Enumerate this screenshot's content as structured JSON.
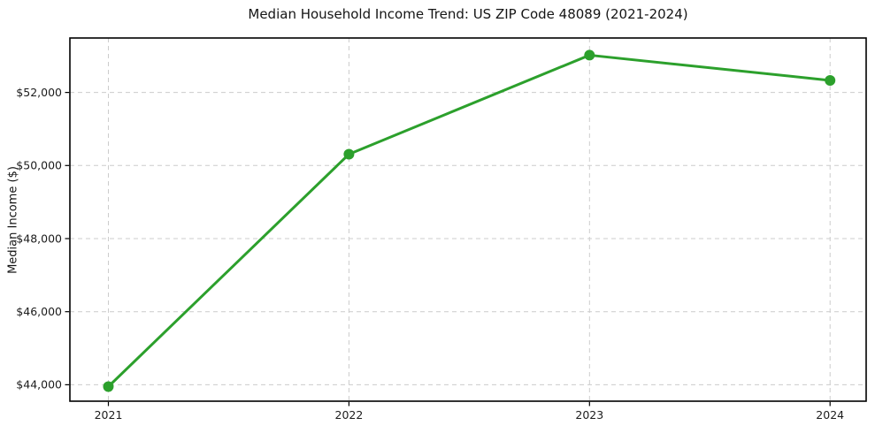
{
  "figure": {
    "background": "#ffffff"
  },
  "chart_data": {
    "type": "line",
    "title": "Median Household Income Trend: US ZIP Code 48089 (2021-2024)",
    "xlabel": "",
    "ylabel": "Median Income ($)",
    "x": [
      2021,
      2022,
      2023,
      2024
    ],
    "xticklabels": [
      "2021",
      "2022",
      "2023",
      "2024"
    ],
    "values": [
      43950,
      50310,
      53020,
      52330
    ],
    "yticks": [
      44000,
      46000,
      48000,
      50000,
      52000
    ],
    "yticklabels": [
      "$44,000",
      "$46,000",
      "$48,000",
      "$50,000",
      "$52,000"
    ],
    "ylim": [
      43550,
      53490
    ],
    "xlim": [
      2020.84,
      2024.15
    ],
    "grid": true,
    "grid_style": "dashed",
    "legend": false,
    "marker": "circle",
    "marker_radius": 6,
    "line_width": 3,
    "colors": {
      "line": "#2ca02c",
      "grid": "#cccccc",
      "axis": "#000000",
      "text": "#1c1c1c"
    }
  }
}
